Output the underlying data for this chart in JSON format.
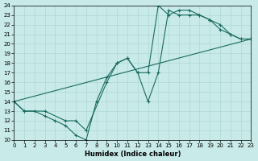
{
  "xlabel": "Humidex (Indice chaleur)",
  "bg_color": "#c8eae8",
  "grid_color": "#afd8d5",
  "line_color": "#1a6b60",
  "xlim": [
    0,
    23
  ],
  "ylim": [
    10,
    24
  ],
  "xticks": [
    0,
    1,
    2,
    3,
    4,
    5,
    6,
    7,
    8,
    9,
    10,
    11,
    12,
    13,
    14,
    15,
    16,
    17,
    18,
    19,
    20,
    21,
    22,
    23
  ],
  "yticks": [
    10,
    11,
    12,
    13,
    14,
    15,
    16,
    17,
    18,
    19,
    20,
    21,
    22,
    23,
    24
  ],
  "line1_x": [
    0,
    1,
    2,
    3,
    4,
    5,
    6,
    7,
    8,
    9,
    10,
    11,
    12,
    13,
    14,
    15,
    16,
    17,
    18,
    19,
    20,
    21,
    22,
    23
  ],
  "line1_y": [
    14,
    13,
    13,
    12.5,
    12,
    11.5,
    10.5,
    10,
    14,
    16.5,
    18,
    18.5,
    17,
    14,
    17,
    23.5,
    23,
    23,
    23,
    22.5,
    21.5,
    21,
    20.5,
    20.5
  ],
  "line2_x": [
    0,
    1,
    3,
    5,
    6,
    7,
    9,
    10,
    11,
    12,
    13,
    14,
    15,
    16,
    17,
    18,
    19,
    20,
    21,
    22,
    23
  ],
  "line2_y": [
    14,
    13,
    13,
    12,
    12,
    11,
    16,
    18,
    18.5,
    17,
    17,
    24,
    23,
    23.5,
    23.5,
    23,
    22.5,
    22,
    21,
    20.5,
    20.5
  ],
  "line3_x": [
    0,
    23
  ],
  "line3_y": [
    14,
    20.5
  ]
}
